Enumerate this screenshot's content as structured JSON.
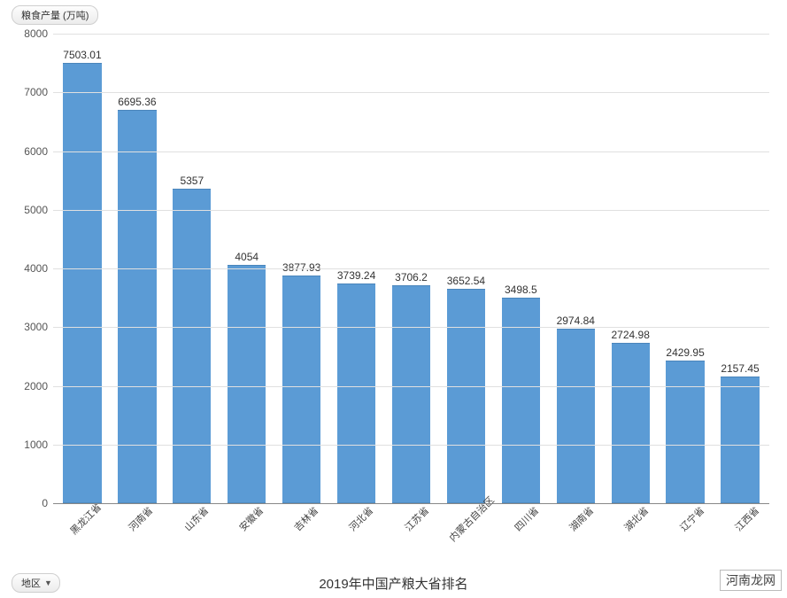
{
  "legend_label": "粮食产量 (万吨)",
  "region_selector_label": "地区",
  "chart_title": "2019年中国产粮大省排名",
  "watermark_text": "河南龙网",
  "chart": {
    "type": "bar",
    "background_color": "#ffffff",
    "series_color": "#5b9bd5",
    "grid_color": "#e0e0e0",
    "axis_color": "#888888",
    "label_color": "#555555",
    "value_label_fontsize": 12,
    "tick_label_fontsize": 12,
    "x_label_fontsize": 11,
    "title_fontsize": 15,
    "x_label_rotation_deg": -45,
    "bar_width_ratio": 0.7,
    "ylim": [
      0,
      8000
    ],
    "ytick_step": 1000,
    "yticks": [
      0,
      1000,
      2000,
      3000,
      4000,
      5000,
      6000,
      7000,
      8000
    ],
    "categories": [
      "黑龙江省",
      "河南省",
      "山东省",
      "安徽省",
      "吉林省",
      "河北省",
      "江苏省",
      "内蒙古自治区",
      "四川省",
      "湖南省",
      "湖北省",
      "辽宁省",
      "江西省"
    ],
    "values": [
      7503.01,
      6695.36,
      5357,
      4054,
      3877.93,
      3739.24,
      3706.2,
      3652.54,
      3498.5,
      2974.84,
      2724.98,
      2429.95,
      2157.45
    ]
  }
}
